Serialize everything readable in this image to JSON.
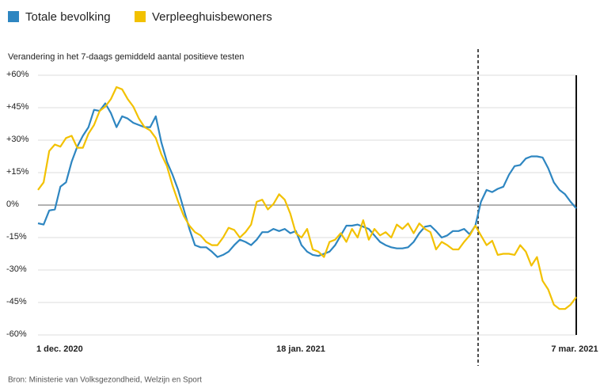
{
  "chart_data": {
    "type": "line",
    "subtitle": "Verandering in het 7-daags gemiddeld aantal positieve testen",
    "source": "Bron: Ministerie van Volksgezondheid, Welzijn en Sport",
    "x": [
      0,
      1,
      2,
      3,
      4,
      5,
      6,
      7,
      8,
      9,
      10,
      11,
      12,
      13,
      14,
      15,
      16,
      17,
      18,
      19,
      20,
      21,
      22,
      23,
      24,
      25,
      26,
      27,
      28,
      29,
      30,
      31,
      32,
      33,
      34,
      35,
      36,
      37,
      38,
      39,
      40,
      41,
      42,
      43,
      44,
      45,
      46,
      47,
      48,
      49,
      50,
      51,
      52,
      53,
      54,
      55,
      56,
      57,
      58,
      59,
      60,
      61,
      62,
      63,
      64,
      65,
      66,
      67,
      68,
      69,
      70,
      71,
      72,
      73,
      74,
      75,
      76,
      77,
      78,
      79,
      80,
      81,
      82,
      83,
      84,
      85,
      86,
      87,
      88,
      89,
      90,
      91,
      92,
      93,
      94,
      95,
      96
    ],
    "xlim": [
      0,
      96
    ],
    "xticks": [
      {
        "value": 0,
        "label": "1 dec. 2020"
      },
      {
        "value": 48,
        "label": "18 jan. 2021"
      },
      {
        "value": 96,
        "label": "7 mar. 2021"
      }
    ],
    "ylim": [
      -60,
      60
    ],
    "yticks": [
      {
        "value": 60,
        "label": "+60%"
      },
      {
        "value": 45,
        "label": "+45%"
      },
      {
        "value": 30,
        "label": "+30%"
      },
      {
        "value": 15,
        "label": "+15%"
      },
      {
        "value": 0,
        "label": "0%"
      },
      {
        "value": -15,
        "label": "-15%"
      },
      {
        "value": -30,
        "label": "-30%"
      },
      {
        "value": -45,
        "label": "-45%"
      },
      {
        "value": -60,
        "label": "-60%"
      }
    ],
    "grid": true,
    "series": [
      {
        "name": "Totale bevolking",
        "color": "#2e86c1",
        "values": [
          -8.4,
          -9,
          -2.5,
          -2,
          8.5,
          10.5,
          20,
          27,
          32,
          36,
          44,
          43.5,
          47,
          42.5,
          36,
          41,
          40,
          38,
          37,
          36,
          36,
          41,
          29,
          20,
          14,
          7,
          -2,
          -11,
          -18.5,
          -19.5,
          -19.5,
          -21.5,
          -24,
          -23,
          -21.5,
          -18.5,
          -16,
          -17,
          -18.5,
          -16,
          -12.5,
          -12.5,
          -11,
          -12,
          -11,
          -13,
          -12,
          -18.5,
          -21.5,
          -23,
          -23.5,
          -22.5,
          -21.5,
          -18.5,
          -14,
          -9.5,
          -9.5,
          -9,
          -10,
          -11,
          -14,
          -17,
          -18.5,
          -19.5,
          -20,
          -20,
          -19.5,
          -17,
          -13,
          -10,
          -9.5,
          -12,
          -15,
          -14,
          -12,
          -12,
          -11,
          -13.5,
          -9.5,
          1.5,
          7,
          6,
          7.5,
          8.5,
          14,
          18,
          18.5,
          21.5,
          22.5,
          22.5,
          22,
          17,
          10.5,
          7,
          5,
          1.5,
          -1.5
        ]
      },
      {
        "name": "Verpleeghuisbewoners",
        "color": "#f2c100",
        "values": [
          7,
          10.5,
          25,
          28,
          27,
          31,
          32,
          26.5,
          26.5,
          33,
          37,
          43.5,
          45.5,
          49,
          54.5,
          53.5,
          49,
          45.5,
          40,
          36,
          34.5,
          31,
          23.5,
          18,
          9,
          1.5,
          -5,
          -9.5,
          -12.5,
          -14,
          -17,
          -18.5,
          -18.5,
          -15,
          -10.5,
          -11.5,
          -15,
          -12.5,
          -9,
          1.5,
          2.5,
          -2,
          0.5,
          5,
          2.5,
          -4,
          -13,
          -15,
          -11,
          -20.5,
          -21.5,
          -24,
          -17,
          -16,
          -13,
          -17,
          -11,
          -15,
          -7,
          -16,
          -11,
          -14,
          -12.5,
          -15,
          -9,
          -11,
          -8.5,
          -13,
          -8.5,
          -11,
          -12.5,
          -20.5,
          -17,
          -18.5,
          -20.5,
          -20.5,
          -17,
          -14,
          -9.5,
          -14,
          -18.5,
          -16.5,
          -23,
          -22.5,
          -22.5,
          -23,
          -18.5,
          -21.5,
          -28,
          -24,
          -35,
          -39,
          -46,
          -48,
          -48,
          -46,
          -42.5
        ]
      }
    ]
  }
}
